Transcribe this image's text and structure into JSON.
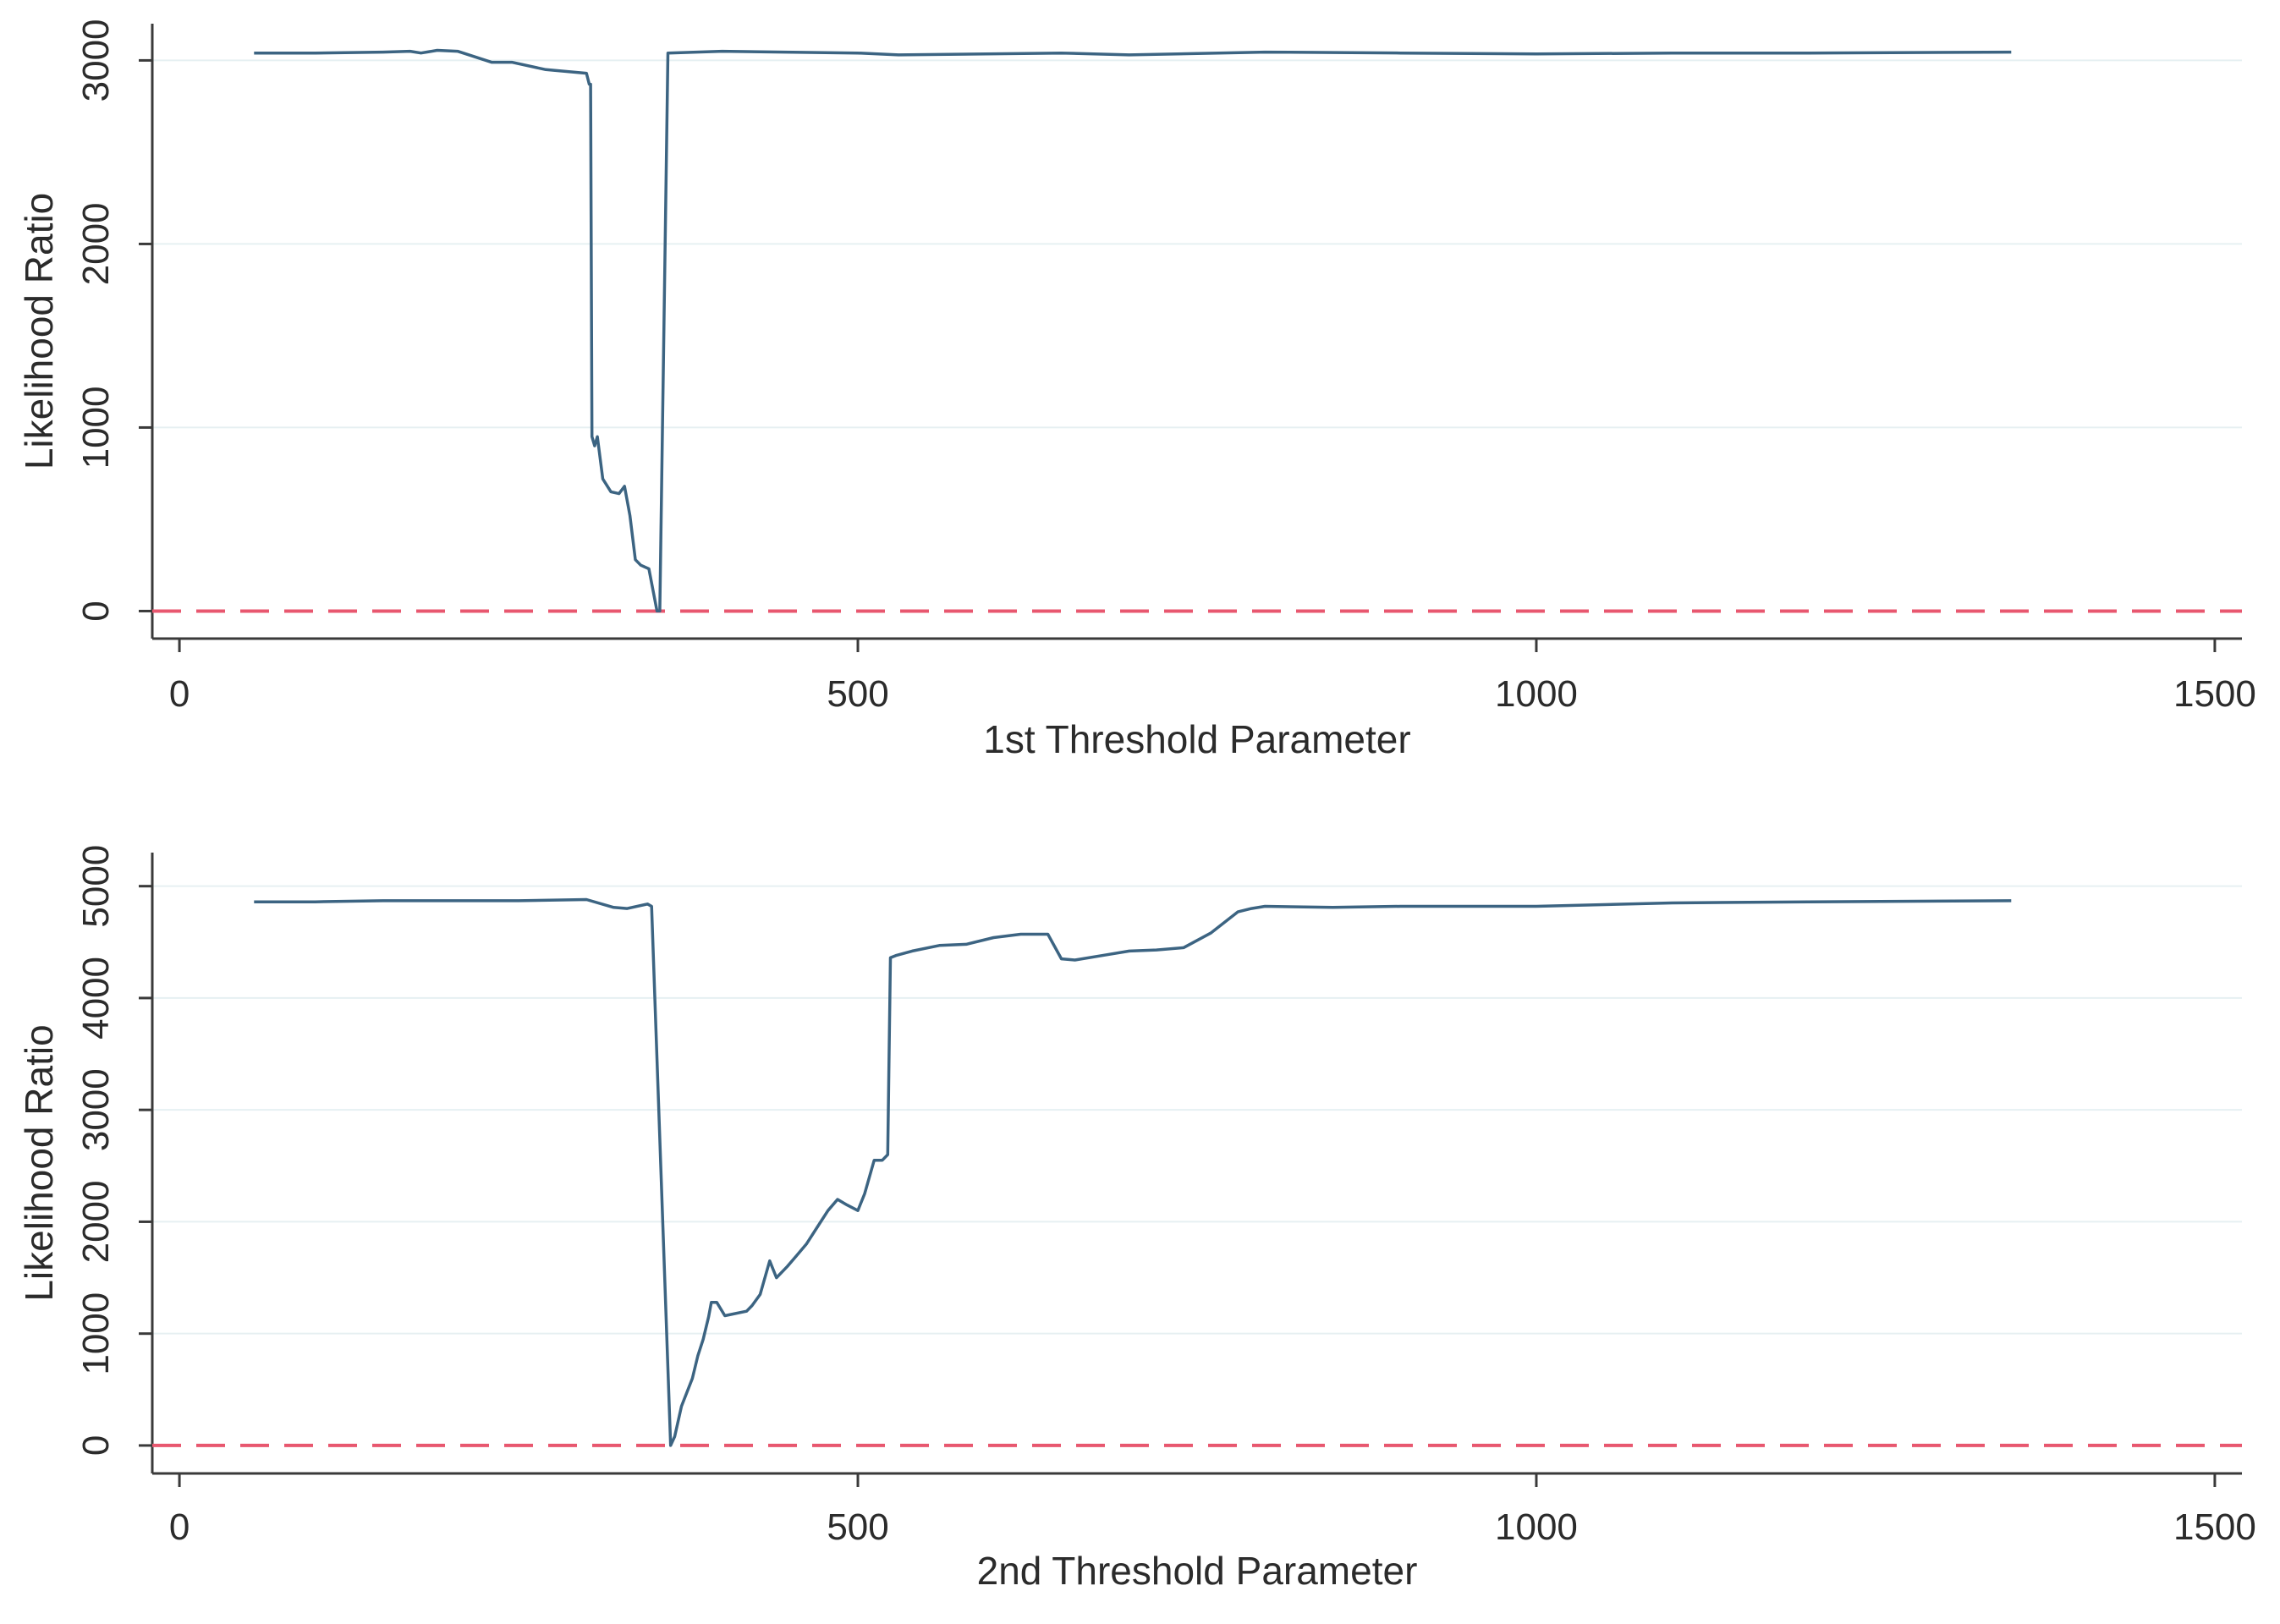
{
  "colors": {
    "line": "#3c6482",
    "reference": "#e8576f",
    "axis": "#3a3a3a",
    "grid": "#e6f0f2",
    "background": "#ffffff"
  },
  "chart_data": [
    {
      "type": "line",
      "xlabel": "1st Threshold Parameter",
      "ylabel": "Likelihood Ratio",
      "xlim": [
        -20,
        1520
      ],
      "ylim": [
        -150,
        3200
      ],
      "xticks": [
        0,
        500,
        1000,
        1500
      ],
      "yticks": [
        0,
        1000,
        2000,
        3000
      ],
      "grid": true,
      "reference_line": {
        "y": 0,
        "style": "dashed"
      },
      "series": [
        {
          "x": [
            55,
            100,
            150,
            170,
            178,
            190,
            205,
            230,
            245,
            270,
            300,
            302,
            303,
            304,
            306,
            308,
            312,
            318,
            324,
            328,
            332,
            336,
            340,
            346,
            352,
            354,
            360,
            400,
            500,
            530,
            650,
            700,
            800,
            900,
            1000,
            1100,
            1200,
            1350
          ],
          "y": [
            3040,
            3040,
            3045,
            3050,
            3040,
            3055,
            3050,
            2990,
            2990,
            2950,
            2930,
            2870,
            2870,
            950,
            900,
            950,
            720,
            650,
            640,
            680,
            520,
            280,
            250,
            230,
            0,
            0,
            3040,
            3050,
            3040,
            3030,
            3040,
            3030,
            3045,
            3040,
            3035,
            3040,
            3040,
            3045
          ]
        }
      ]
    },
    {
      "type": "line",
      "xlabel": "2nd Threshold Parameter",
      "ylabel": "Likelihood Ratio",
      "xlim": [
        -20,
        1520
      ],
      "ylim": [
        -250,
        5300
      ],
      "xticks": [
        0,
        500,
        1000,
        1500
      ],
      "yticks": [
        0,
        1000,
        2000,
        3000,
        4000,
        5000
      ],
      "grid": true,
      "reference_line": {
        "y": 0,
        "style": "dashed"
      },
      "series": [
        {
          "x": [
            55,
            100,
            150,
            200,
            250,
            300,
            320,
            330,
            345,
            348,
            362,
            365,
            370,
            378,
            382,
            386,
            390,
            392,
            396,
            402,
            418,
            422,
            428,
            435,
            440,
            448,
            455,
            462,
            470,
            478,
            485,
            492,
            500,
            505,
            512,
            518,
            522,
            524,
            528,
            540,
            560,
            580,
            600,
            620,
            640,
            650,
            660,
            680,
            700,
            720,
            740,
            760,
            780,
            790,
            800,
            850,
            900,
            1000,
            1100,
            1200,
            1350
          ],
          "y": [
            4860,
            4860,
            4870,
            4870,
            4870,
            4880,
            4810,
            4800,
            4840,
            4820,
            0,
            80,
            350,
            600,
            800,
            950,
            1150,
            1280,
            1280,
            1160,
            1200,
            1250,
            1350,
            1650,
            1500,
            1600,
            1700,
            1800,
            1950,
            2100,
            2200,
            2150,
            2100,
            2250,
            2550,
            2550,
            2600,
            4360,
            4380,
            4420,
            4470,
            4480,
            4540,
            4570,
            4570,
            4350,
            4340,
            4380,
            4420,
            4430,
            4450,
            4580,
            4770,
            4800,
            4820,
            4810,
            4820,
            4820,
            4850,
            4860,
            4870
          ]
        }
      ]
    }
  ]
}
